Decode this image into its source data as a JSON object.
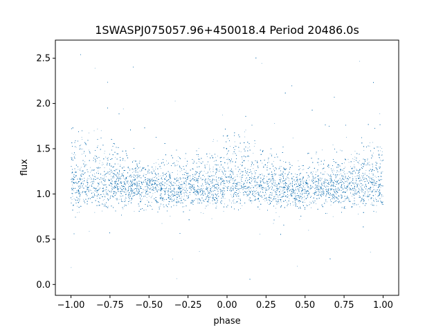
{
  "chart_data": {
    "type": "scatter",
    "title": "1SWASPJ075057.96+450018.4 Period 20486.0s",
    "xlabel": "phase",
    "ylabel": "flux",
    "xlim": [
      -1.1,
      1.1
    ],
    "ylim": [
      -0.12,
      2.7
    ],
    "x_ticks": [
      -1.0,
      -0.75,
      -0.5,
      -0.25,
      0.0,
      0.25,
      0.5,
      0.75,
      1.0
    ],
    "x_tick_labels": [
      "−1.00",
      "−0.75",
      "−0.50",
      "−0.25",
      "0.00",
      "0.25",
      "0.50",
      "0.75",
      "1.00"
    ],
    "y_ticks": [
      0.0,
      0.5,
      1.0,
      1.5,
      2.0,
      2.5
    ],
    "y_tick_labels": [
      "0.0",
      "0.5",
      "1.0",
      "1.5",
      "2.0",
      "2.5"
    ],
    "grid": false,
    "marker_color": "#1f77b4",
    "series": [
      {
        "x_range": [
          -1.0,
          1.0
        ],
        "point_count": 30000,
        "baseline_flux": 1.05,
        "lower_band_spread": 0.1,
        "upper_band_profile": {
          "phase": [
            -1.0,
            -0.75,
            -0.5,
            -0.25,
            0.0,
            0.1,
            0.25,
            0.5,
            0.75,
            1.0
          ],
          "flux": [
            1.55,
            1.45,
            1.2,
            1.25,
            1.55,
            1.55,
            1.35,
            1.15,
            1.3,
            1.55
          ]
        }
      }
    ]
  }
}
